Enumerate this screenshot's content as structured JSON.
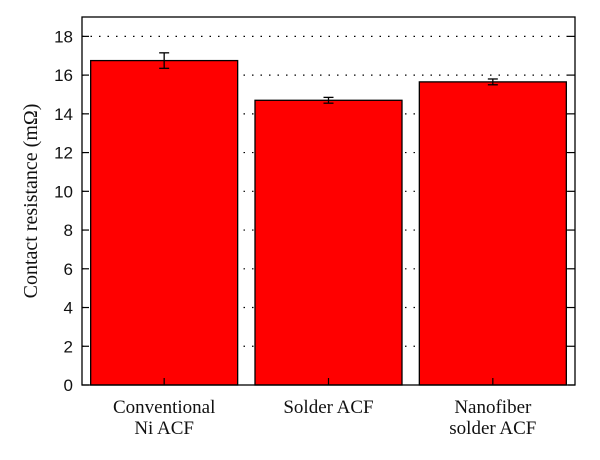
{
  "chart_data": {
    "type": "bar",
    "categories": [
      [
        "Conventional",
        "Ni ACF"
      ],
      [
        "Solder ACF"
      ],
      [
        "Nanofiber",
        "solder ACF"
      ]
    ],
    "values": [
      16.75,
      14.7,
      15.65
    ],
    "errors": [
      0.4,
      0.15,
      0.15
    ],
    "ylabel": "Contact resistance (mΩ)",
    "xlabel": "",
    "title": "",
    "ylim": [
      0,
      19
    ],
    "yticks": [
      "0",
      "2",
      "4",
      "6",
      "8",
      "10",
      "12",
      "14",
      "16",
      "18"
    ],
    "grid": "horizontal-dotted",
    "bar_color": "#ff0000",
    "bar_edge_color": "#000000"
  }
}
